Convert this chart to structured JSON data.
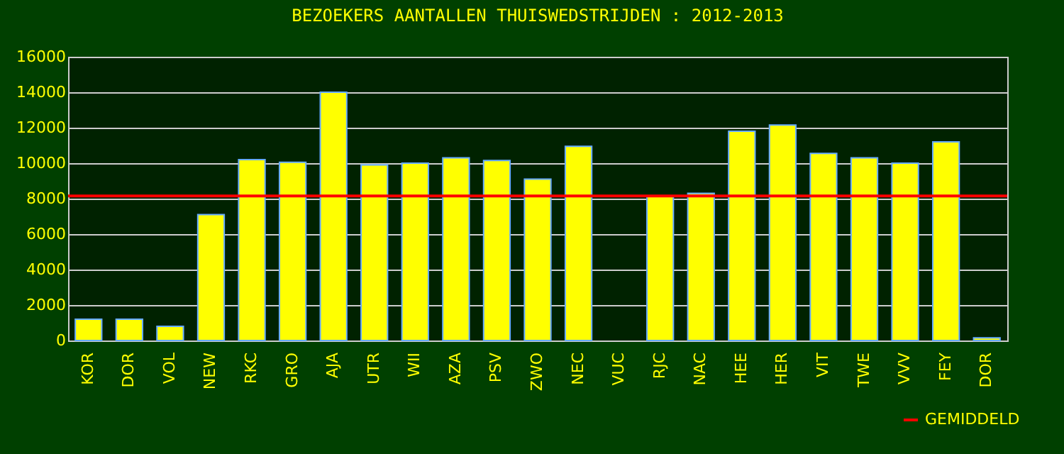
{
  "chart_data": {
    "type": "bar",
    "title": "BEZOEKERS AANTALLEN THUISWEDSTRIJDEN : 2012-2013",
    "categories": [
      "KOR",
      "DOR",
      "VOL",
      "NEW",
      "RKC",
      "GRO",
      "AJA",
      "UTR",
      "WII",
      "AZA",
      "PSV",
      "ZWO",
      "NEC",
      "VUC",
      "RJC",
      "NAC",
      "HEE",
      "HER",
      "VIT",
      "TWE",
      "VVV",
      "FEY",
      "DOR"
    ],
    "values": [
      1200,
      1200,
      800,
      7100,
      10200,
      10050,
      14000,
      9900,
      10000,
      10300,
      10150,
      9100,
      10950,
      null,
      8150,
      8300,
      11800,
      12150,
      10550,
      10300,
      10000,
      11200,
      150
    ],
    "color": "#ffff00",
    "ylim": [
      0,
      16000
    ],
    "yticks": [
      0,
      2000,
      4000,
      6000,
      8000,
      10000,
      12000,
      14000,
      16000
    ],
    "grid": "y",
    "ref_lines": [
      {
        "axis": "y",
        "value": 8150,
        "label": "GEMIDDELD",
        "color": "#ff0000"
      }
    ],
    "legend": "bottom right"
  }
}
